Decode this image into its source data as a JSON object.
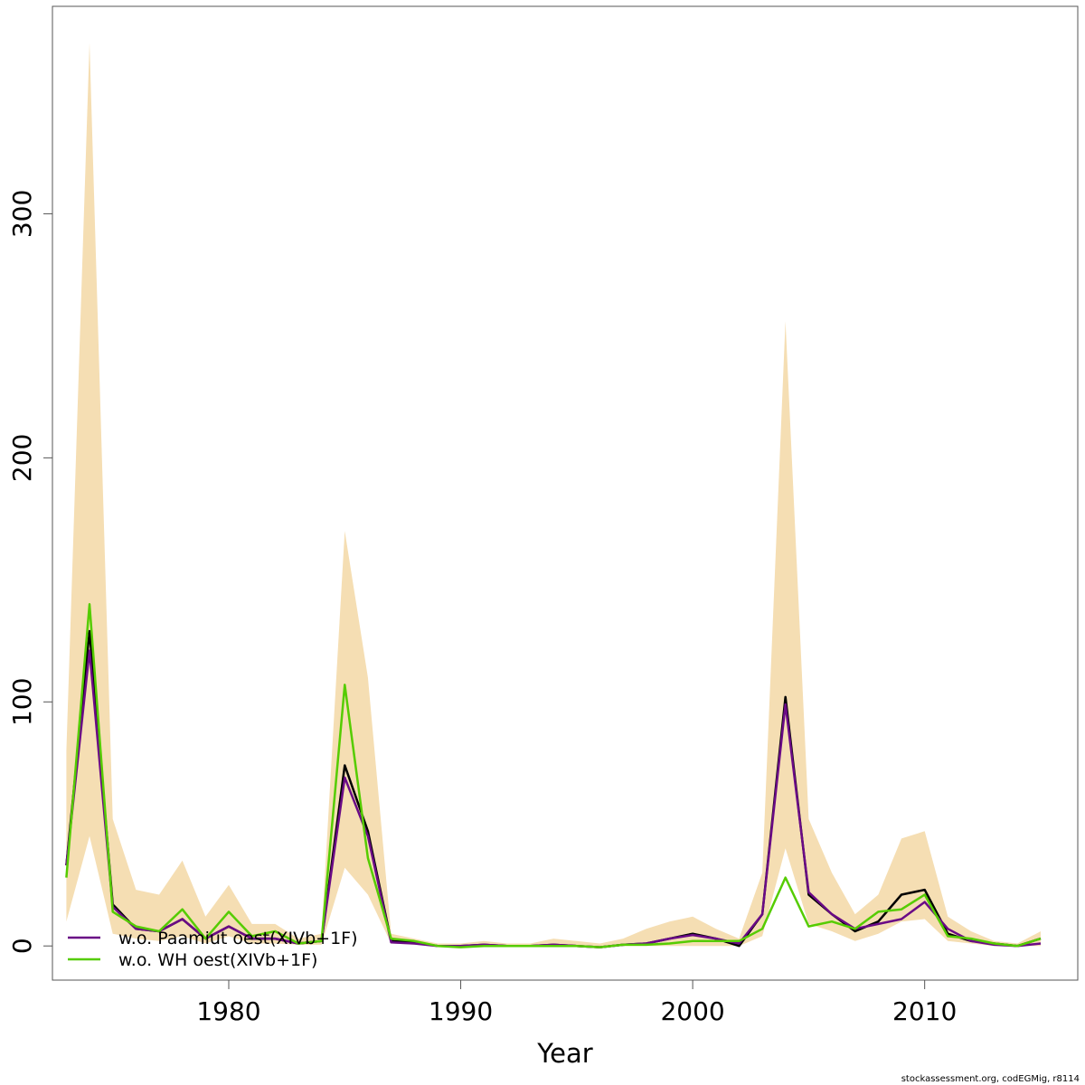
{
  "chart_data": {
    "type": "line",
    "title": "",
    "xlabel": "Year",
    "ylabel": "",
    "xlim": [
      1972.4,
      2016.6
    ],
    "ylim": [
      -14,
      385
    ],
    "x_ticks": [
      1980,
      1990,
      2000,
      2010
    ],
    "y_ticks": [
      0,
      100,
      200,
      300
    ],
    "x": [
      1973,
      1974,
      1975,
      1976,
      1977,
      1978,
      1979,
      1980,
      1981,
      1982,
      1983,
      1984,
      1985,
      1986,
      1987,
      1988,
      1989,
      1990,
      1991,
      1992,
      1993,
      1994,
      1995,
      1996,
      1997,
      1998,
      1999,
      2000,
      2001,
      2002,
      2003,
      2004,
      2005,
      2006,
      2007,
      2008,
      2009,
      2010,
      2011,
      2012,
      2013,
      2014,
      2015
    ],
    "band": {
      "color": "#F5DEB3",
      "lower": [
        10,
        45,
        5,
        3,
        2,
        4,
        1,
        4,
        1,
        1,
        0.5,
        0.5,
        32,
        21,
        1,
        0.5,
        0,
        0,
        0,
        0,
        0,
        0,
        0,
        0,
        0,
        0,
        0,
        0,
        0,
        0,
        4,
        40,
        9,
        6,
        2,
        5,
        10,
        11,
        2,
        1,
        0,
        0,
        0
      ],
      "upper": [
        80,
        370,
        52,
        23,
        21,
        35,
        12,
        25,
        9,
        9,
        3,
        5,
        170,
        110,
        5,
        3,
        1,
        1,
        2,
        1,
        1,
        3,
        2,
        1,
        3,
        7,
        10,
        12,
        7,
        3,
        30,
        256,
        52,
        30,
        13,
        21,
        44,
        47,
        12,
        6,
        2,
        1,
        6
      ]
    },
    "series": [
      {
        "name": "",
        "color": "#000000",
        "values": [
          33,
          129,
          17,
          7,
          6,
          11,
          3,
          8,
          3,
          3,
          1,
          2,
          74,
          47,
          2,
          1.5,
          0,
          0,
          0.5,
          0,
          0,
          0.5,
          0,
          -0.5,
          0.5,
          1,
          3,
          5,
          3,
          0,
          13,
          102,
          21,
          13,
          6,
          10,
          21,
          23,
          5,
          2,
          1,
          0,
          3
        ]
      },
      {
        "name": "w.o. Paamiut   oest(XIVb+1F)",
        "color": "#6A0A86",
        "values": [
          33,
          121,
          16,
          7,
          6,
          11,
          3,
          8,
          3,
          3,
          1,
          2,
          69,
          45,
          1.5,
          1,
          0,
          0,
          0.5,
          0,
          0,
          0.5,
          0,
          -0.5,
          0.5,
          1,
          3,
          4.5,
          3,
          1,
          13,
          99,
          22,
          13,
          7,
          9,
          11,
          18,
          7,
          2,
          0.5,
          0,
          1
        ]
      },
      {
        "name": "w.o. WH   oest(XIVb+1F)",
        "color": "#55CC00",
        "values": [
          28,
          140,
          14,
          8,
          6,
          15,
          3,
          14,
          4,
          6,
          1,
          2,
          107,
          36,
          3,
          2,
          0,
          -0.5,
          0,
          0,
          0,
          0,
          0,
          -0.5,
          0.5,
          0.5,
          1,
          2,
          2,
          2,
          7,
          28,
          8,
          10,
          7,
          14,
          15,
          21,
          4,
          3,
          1,
          0,
          3
        ]
      }
    ],
    "legend": {
      "position": "bottom-left",
      "entries": [
        {
          "label": "w.o. Paamiut   oest(XIVb+1F)",
          "color": "#6A0A86"
        },
        {
          "label": "w.o. WH   oest(XIVb+1F)",
          "color": "#55CC00"
        }
      ]
    },
    "grid": false
  },
  "footer": "stockassessment.org, codEGMig, r8114"
}
